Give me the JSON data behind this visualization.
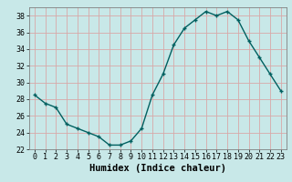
{
  "x": [
    0,
    1,
    2,
    3,
    4,
    5,
    6,
    7,
    8,
    9,
    10,
    11,
    12,
    13,
    14,
    15,
    16,
    17,
    18,
    19,
    20,
    21,
    22,
    23
  ],
  "y": [
    28.5,
    27.5,
    27.0,
    25.0,
    24.5,
    24.0,
    23.5,
    22.5,
    22.5,
    23.0,
    24.5,
    28.5,
    31.0,
    34.5,
    36.5,
    37.5,
    38.5,
    38.0,
    38.5,
    37.5,
    35.0,
    33.0,
    31.0,
    29.0
  ],
  "line_color": "#006060",
  "marker": "+",
  "marker_size": 3,
  "marker_lw": 1.0,
  "line_width": 1.0,
  "bg_color": "#c8e8e8",
  "grid_color": "#d8a8a8",
  "xlabel": "Humidex (Indice chaleur)",
  "ylim": [
    22,
    39
  ],
  "xlim": [
    -0.5,
    23.5
  ],
  "yticks": [
    22,
    24,
    26,
    28,
    30,
    32,
    34,
    36,
    38
  ],
  "xticks": [
    0,
    1,
    2,
    3,
    4,
    5,
    6,
    7,
    8,
    9,
    10,
    11,
    12,
    13,
    14,
    15,
    16,
    17,
    18,
    19,
    20,
    21,
    22,
    23
  ],
  "tick_fontsize": 6.0,
  "xlabel_fontsize": 7.5
}
